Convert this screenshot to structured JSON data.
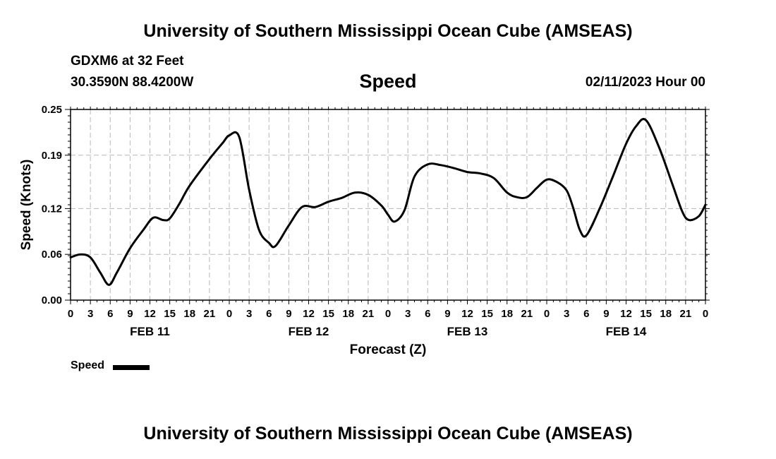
{
  "header": {
    "title": "University of Southern Mississippi Ocean Cube (AMSEAS)",
    "station": "GDXM6 at 32 Feet",
    "coords": "30.3590N  88.4200W",
    "variable": "Speed",
    "datetime": "02/11/2023 Hour 00"
  },
  "footer": {
    "title": "University of Southern Mississippi Ocean Cube (AMSEAS)"
  },
  "legend": {
    "label": "Speed"
  },
  "chart_data": {
    "type": "line",
    "title": "Speed",
    "xlabel": "Forecast (Z)",
    "ylabel": "Speed (Knots)",
    "ylim": [
      0,
      0.25
    ],
    "xlim": [
      0,
      96
    ],
    "yticks": [
      0.0,
      0.06,
      0.12,
      0.19,
      0.25
    ],
    "ytick_labels": [
      "0.00",
      "0.06",
      "0.12",
      "0.19",
      "0.25"
    ],
    "xtick_labels": [
      "0",
      "3",
      "6",
      "9",
      "12",
      "15",
      "18",
      "21",
      "0",
      "3",
      "6",
      "9",
      "12",
      "15",
      "18",
      "21",
      "0",
      "3",
      "6",
      "9",
      "12",
      "15",
      "18",
      "21",
      "0",
      "3",
      "6",
      "9",
      "12",
      "15",
      "18",
      "21",
      "0"
    ],
    "day_labels": [
      {
        "label": "FEB 11",
        "hour": 12
      },
      {
        "label": "FEB 12",
        "hour": 36
      },
      {
        "label": "FEB 13",
        "hour": 60
      },
      {
        "label": "FEB 14",
        "hour": 84
      }
    ],
    "grid": true,
    "series": [
      {
        "name": "Speed",
        "color": "#000000",
        "x": [
          0,
          1.5,
          3,
          4.5,
          5.8,
          7,
          9,
          11,
          12.5,
          14,
          15,
          16.5,
          18,
          21,
          23,
          24,
          25.5,
          27,
          28.5,
          30,
          31,
          33,
          35,
          37,
          39,
          41,
          43,
          45,
          47,
          48,
          49,
          50.5,
          52,
          54,
          56,
          58,
          60,
          62,
          64,
          66,
          67.5,
          69,
          70.5,
          72,
          73.5,
          75,
          76,
          77,
          78,
          80,
          82,
          84,
          85.5,
          87,
          89,
          91,
          92.5,
          93.5,
          95,
          96
        ],
        "values": [
          0.056,
          0.06,
          0.056,
          0.036,
          0.02,
          0.036,
          0.068,
          0.092,
          0.108,
          0.105,
          0.107,
          0.127,
          0.15,
          0.185,
          0.206,
          0.216,
          0.214,
          0.145,
          0.092,
          0.075,
          0.071,
          0.098,
          0.122,
          0.122,
          0.129,
          0.134,
          0.141,
          0.138,
          0.124,
          0.112,
          0.103,
          0.118,
          0.162,
          0.178,
          0.177,
          0.173,
          0.168,
          0.166,
          0.16,
          0.141,
          0.135,
          0.135,
          0.147,
          0.158,
          0.155,
          0.144,
          0.121,
          0.092,
          0.085,
          0.12,
          0.162,
          0.205,
          0.228,
          0.236,
          0.2,
          0.152,
          0.116,
          0.105,
          0.11,
          0.125
        ]
      }
    ]
  }
}
